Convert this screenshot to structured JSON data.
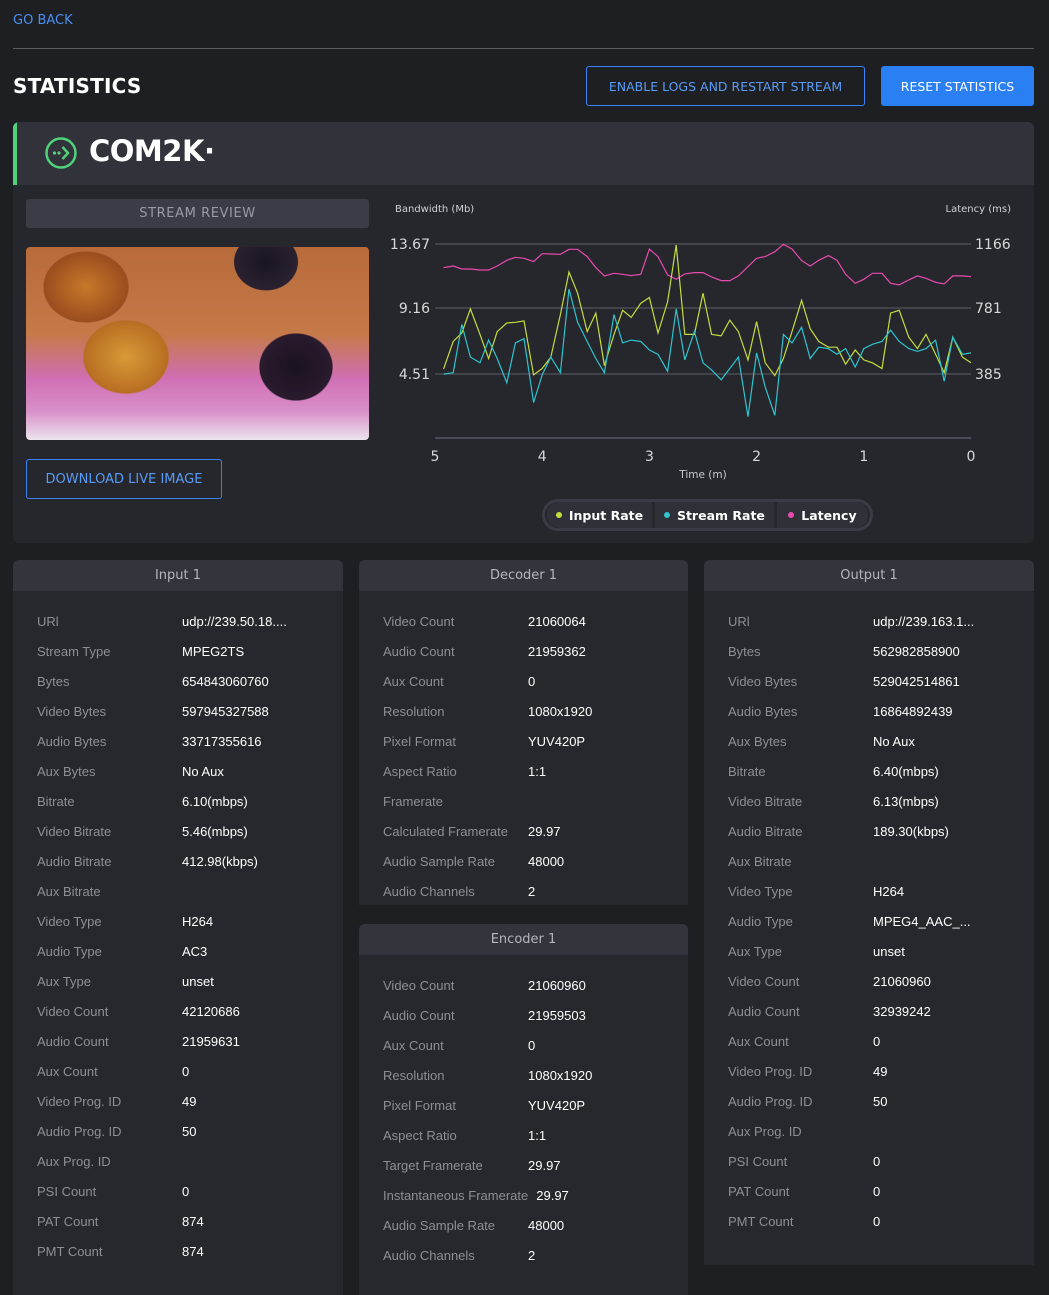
{
  "nav": {
    "go_back": "GO BACK"
  },
  "header": {
    "title": "STATISTICS",
    "enable_logs_label": "ENABLE LOGS AND RESTART STREAM",
    "reset_label": "RESET STATISTICS"
  },
  "brand": {
    "name": "COM2K·",
    "accent": "#4fd27a"
  },
  "stream_review": {
    "title": "STREAM REVIEW",
    "download_label": "DOWNLOAD LIVE IMAGE"
  },
  "chart_data": {
    "type": "line",
    "ylabel_left": "Bandwidth (Mb)",
    "ylabel_right": "Latency (ms)",
    "xlabel": "Time (m)",
    "x_ticks": [
      "5",
      "4",
      "3",
      "2",
      "1",
      "0"
    ],
    "xlim": [
      5,
      0
    ],
    "y_left_ticks": [
      "13.67",
      "9.16",
      "4.51"
    ],
    "y_left_lim": [
      0,
      13.67
    ],
    "y_right_ticks": [
      "1166",
      "781",
      "385"
    ],
    "y_right_lim": [
      0,
      1166
    ],
    "grid": true,
    "legend_position": "bottom",
    "x": [
      4.92,
      4.83,
      4.75,
      4.67,
      4.58,
      4.5,
      4.42,
      4.33,
      4.25,
      4.17,
      4.08,
      4.0,
      3.92,
      3.83,
      3.75,
      3.67,
      3.58,
      3.5,
      3.42,
      3.33,
      3.25,
      3.17,
      3.08,
      3.0,
      2.92,
      2.83,
      2.75,
      2.67,
      2.58,
      2.5,
      2.42,
      2.33,
      2.25,
      2.17,
      2.08,
      2.0,
      1.92,
      1.83,
      1.75,
      1.67,
      1.58,
      1.5,
      1.42,
      1.33,
      1.25,
      1.17,
      1.08,
      1.0,
      0.92,
      0.83,
      0.75,
      0.67,
      0.58,
      0.5,
      0.42,
      0.33,
      0.25,
      0.17,
      0.08,
      0.0
    ],
    "series": [
      {
        "name": "Input Rate",
        "axis": "left",
        "color": "#c5dc3c",
        "values": [
          4.87,
          6.8,
          7.4,
          9.1,
          7.3,
          5.6,
          7.5,
          8.1,
          8.15,
          8.25,
          4.45,
          4.9,
          5.7,
          8.7,
          11.7,
          10.2,
          7.5,
          8.8,
          5.1,
          7.3,
          9.0,
          8.5,
          9.5,
          9.9,
          7.4,
          9.6,
          13.6,
          7.3,
          7.3,
          10.2,
          7.3,
          7.2,
          8.3,
          7.5,
          5.5,
          8.2,
          5.3,
          4.4,
          5.6,
          7.5,
          9.7,
          7.7,
          6.8,
          6.4,
          6.4,
          5.2,
          6.2,
          5.5,
          5.3,
          4.9,
          8.8,
          9.0,
          7.1,
          6.3,
          7.3,
          5.9,
          4.6,
          7.1,
          5.7,
          5.3
        ]
      },
      {
        "name": "Stream Rate",
        "axis": "left",
        "color": "#2ec4d0",
        "values": [
          4.5,
          4.6,
          8.0,
          5.7,
          5.3,
          6.9,
          5.6,
          3.9,
          6.7,
          7.0,
          2.5,
          4.45,
          5.7,
          4.6,
          10.5,
          8.15,
          6.8,
          5.6,
          4.6,
          8.7,
          6.7,
          6.9,
          6.8,
          6.2,
          5.9,
          4.7,
          9.1,
          5.5,
          7.5,
          5.3,
          4.8,
          4.1,
          4.9,
          5.7,
          1.5,
          6.0,
          3.6,
          1.6,
          7.3,
          6.7,
          7.8,
          5.6,
          6.4,
          6.3,
          5.9,
          6.3,
          5.0,
          6.3,
          6.6,
          6.8,
          7.6,
          6.8,
          6.3,
          6.1,
          6.3,
          6.9,
          4.0,
          7.1,
          5.9,
          6.0
        ]
      },
      {
        "name": "Latency",
        "axis": "right",
        "color": "#e84ab0",
        "values": [
          1024,
          1034,
          1016,
          1016,
          1010,
          1010,
          1034,
          1068,
          1086,
          1080,
          1060,
          1108,
          1106,
          1104,
          1134,
          1134,
          1090,
          1024,
          974,
          990,
          984,
          976,
          984,
          1136,
          1090,
          980,
          954,
          986,
          994,
          994,
          968,
          946,
          946,
          974,
          1030,
          1080,
          1090,
          1120,
          1164,
          1136,
          1066,
          1034,
          1068,
          1096,
          1068,
          984,
          930,
          954,
          990,
          990,
          930,
          920,
          950,
          974,
          960,
          936,
          926,
          974,
          974,
          970
        ]
      }
    ]
  },
  "panels": {
    "input": {
      "title": "Input 1",
      "rows": [
        {
          "label": "URl",
          "value": "udp://239.50.18...."
        },
        {
          "label": "Stream Type",
          "value": "MPEG2TS"
        },
        {
          "label": "Bytes",
          "value": "654843060760"
        },
        {
          "label": "Video Bytes",
          "value": "597945327588"
        },
        {
          "label": "Audio Bytes",
          "value": "33717355616"
        },
        {
          "label": "Aux Bytes",
          "value": "No Aux"
        },
        {
          "label": "Bitrate",
          "value": "6.10(mbps)"
        },
        {
          "label": "Video Bitrate",
          "value": "5.46(mbps)"
        },
        {
          "label": "Audio Bitrate",
          "value": "412.98(kbps)"
        },
        {
          "label": "Aux Bitrate",
          "value": ""
        },
        {
          "label": "Video Type",
          "value": "H264"
        },
        {
          "label": "Audio Type",
          "value": "AC3"
        },
        {
          "label": "Aux Type",
          "value": "unset"
        },
        {
          "label": "Video Count",
          "value": "42120686"
        },
        {
          "label": "Audio Count",
          "value": "21959631"
        },
        {
          "label": "Aux Count",
          "value": "0"
        },
        {
          "label": "Video Prog. ID",
          "value": "49"
        },
        {
          "label": "Audio Prog. ID",
          "value": "50"
        },
        {
          "label": "Aux Prog. ID",
          "value": ""
        },
        {
          "label": "PSI Count",
          "value": "0"
        },
        {
          "label": "PAT Count",
          "value": "874"
        },
        {
          "label": "PMT Count",
          "value": "874"
        }
      ]
    },
    "decoder": {
      "title": "Decoder 1",
      "rows": [
        {
          "label": "Video Count",
          "value": "21060064"
        },
        {
          "label": "Audio Count",
          "value": "21959362"
        },
        {
          "label": "Aux Count",
          "value": "0"
        },
        {
          "label": "Resolution",
          "value": "1080x1920"
        },
        {
          "label": "Pixel Format",
          "value": "YUV420P"
        },
        {
          "label": "Aspect Ratio",
          "value": "1:1"
        },
        {
          "label": "Framerate",
          "value": ""
        },
        {
          "label": "Calculated Framerate",
          "value": "29.97"
        },
        {
          "label": "Audio Sample Rate",
          "value": "48000"
        },
        {
          "label": "Audio Channels",
          "value": "2"
        }
      ]
    },
    "encoder": {
      "title": "Encoder 1",
      "rows": [
        {
          "label": "Video Count",
          "value": "21060960"
        },
        {
          "label": "Audio Count",
          "value": "21959503"
        },
        {
          "label": "Aux Count",
          "value": "0"
        },
        {
          "label": "Resolution",
          "value": "1080x1920"
        },
        {
          "label": "Pixel Format",
          "value": "YUV420P"
        },
        {
          "label": "Aspect Ratio",
          "value": "1:1"
        },
        {
          "label": "Target Framerate",
          "value": "29.97"
        },
        {
          "label": "Instantaneous Framerate",
          "value": "29.97"
        },
        {
          "label": "Audio Sample Rate",
          "value": "48000"
        },
        {
          "label": "Audio Channels",
          "value": "2"
        }
      ]
    },
    "output": {
      "title": "Output 1",
      "rows": [
        {
          "label": "URl",
          "value": "udp://239.163.1..."
        },
        {
          "label": "Bytes",
          "value": "562982858900"
        },
        {
          "label": "Video Bytes",
          "value": "529042514861"
        },
        {
          "label": "Audio Bytes",
          "value": "16864892439"
        },
        {
          "label": "Aux Bytes",
          "value": "No Aux"
        },
        {
          "label": "Bitrate",
          "value": "6.40(mbps)"
        },
        {
          "label": "Video Bitrate",
          "value": "6.13(mbps)"
        },
        {
          "label": "Audio Bitrate",
          "value": "189.30(kbps)"
        },
        {
          "label": "Aux Bitrate",
          "value": ""
        },
        {
          "label": "Video Type",
          "value": "H264"
        },
        {
          "label": "Audio Type",
          "value": "MPEG4_AAC_..."
        },
        {
          "label": "Aux Type",
          "value": "unset"
        },
        {
          "label": "Video Count",
          "value": "21060960"
        },
        {
          "label": "Audio Count",
          "value": "32939242"
        },
        {
          "label": "Aux Count",
          "value": "0"
        },
        {
          "label": "Video Prog. ID",
          "value": "49"
        },
        {
          "label": "Audio Prog. ID",
          "value": "50"
        },
        {
          "label": "Aux Prog. ID",
          "value": ""
        },
        {
          "label": "PSI Count",
          "value": "0"
        },
        {
          "label": "PAT Count",
          "value": "0"
        },
        {
          "label": "PMT Count",
          "value": "0"
        }
      ]
    }
  }
}
